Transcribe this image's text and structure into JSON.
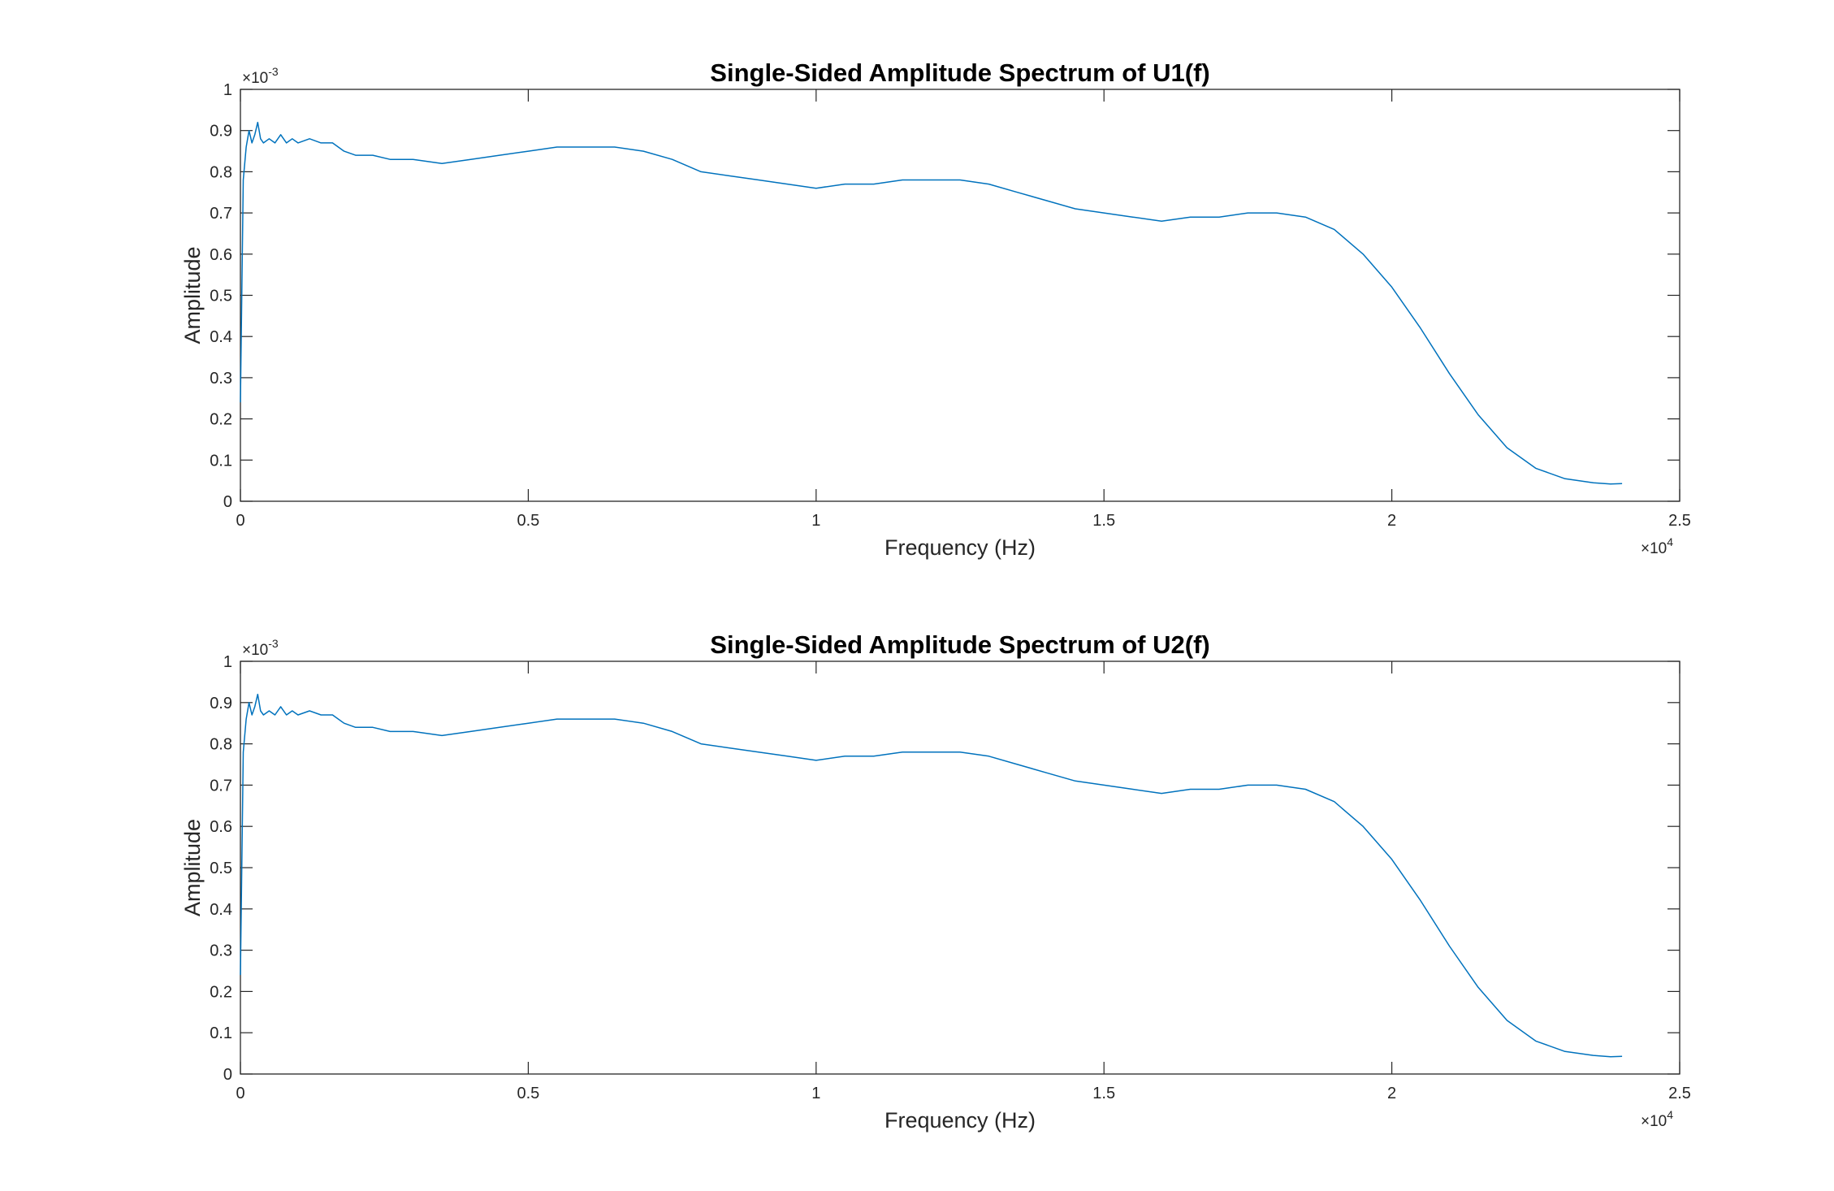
{
  "figure": {
    "background": "#ffffff",
    "line_color": "#0072bd",
    "axes_color": "#262626"
  },
  "chart_data": [
    {
      "type": "line",
      "title": "Single-Sided Amplitude Spectrum of U1(f)",
      "xlabel": "Frequency (Hz)",
      "ylabel": "Amplitude",
      "xlim": [
        0,
        25000
      ],
      "ylim": [
        0,
        0.001
      ],
      "x_ticks": [
        0,
        5000,
        10000,
        15000,
        20000,
        25000
      ],
      "x_tick_labels": [
        "0",
        "0.5",
        "1",
        "1.5",
        "2",
        "2.5"
      ],
      "x_exponent": {
        "base": "×10",
        "power": "4"
      },
      "y_ticks": [
        0,
        0.0001,
        0.0002,
        0.0003,
        0.0004,
        0.0005,
        0.0006,
        0.0007,
        0.0008,
        0.0009,
        0.001
      ],
      "y_tick_labels": [
        "0",
        "0.1",
        "0.2",
        "0.3",
        "0.4",
        "0.5",
        "0.6",
        "0.7",
        "0.8",
        "0.9",
        "1"
      ],
      "y_exponent": {
        "base": "×10",
        "power": "-3"
      },
      "grid": false,
      "series": [
        {
          "x": [
            0,
            50,
            100,
            150,
            200,
            250,
            300,
            350,
            400,
            500,
            600,
            700,
            800,
            900,
            1000,
            1200,
            1400,
            1600,
            1800,
            2000,
            2300,
            2600,
            3000,
            3500,
            4000,
            4500,
            5000,
            5500,
            6000,
            6500,
            7000,
            7500,
            8000,
            8500,
            9000,
            9500,
            10000,
            10500,
            11000,
            11500,
            12000,
            12500,
            13000,
            13500,
            14000,
            14500,
            15000,
            15500,
            16000,
            16500,
            17000,
            17500,
            18000,
            18500,
            19000,
            19500,
            20000,
            20500,
            21000,
            21500,
            22000,
            22500,
            23000,
            23500,
            23800,
            24000
          ],
          "y": [
            0.00024,
            0.00078,
            0.00086,
            0.0009,
            0.00087,
            0.00089,
            0.00092,
            0.00088,
            0.00087,
            0.00088,
            0.00087,
            0.00089,
            0.00087,
            0.00088,
            0.00087,
            0.00088,
            0.00087,
            0.00087,
            0.00085,
            0.00084,
            0.00084,
            0.00083,
            0.00083,
            0.00082,
            0.00083,
            0.00084,
            0.00085,
            0.00086,
            0.00086,
            0.00086,
            0.00085,
            0.00083,
            0.0008,
            0.00079,
            0.00078,
            0.00077,
            0.00076,
            0.00077,
            0.00077,
            0.00078,
            0.00078,
            0.00078,
            0.00077,
            0.00075,
            0.00073,
            0.00071,
            0.0007,
            0.00069,
            0.00068,
            0.00069,
            0.00069,
            0.0007,
            0.0007,
            0.00069,
            0.00066,
            0.0006,
            0.00052,
            0.00042,
            0.00031,
            0.00021,
            0.00013,
            8e-05,
            5.5e-05,
            4.5e-05,
            4.2e-05,
            4.3e-05
          ]
        }
      ]
    },
    {
      "type": "line",
      "title": "Single-Sided Amplitude Spectrum of U2(f)",
      "xlabel": "Frequency (Hz)",
      "ylabel": "Amplitude",
      "xlim": [
        0,
        25000
      ],
      "ylim": [
        0,
        0.001
      ],
      "x_ticks": [
        0,
        5000,
        10000,
        15000,
        20000,
        25000
      ],
      "x_tick_labels": [
        "0",
        "0.5",
        "1",
        "1.5",
        "2",
        "2.5"
      ],
      "x_exponent": {
        "base": "×10",
        "power": "4"
      },
      "y_ticks": [
        0,
        0.0001,
        0.0002,
        0.0003,
        0.0004,
        0.0005,
        0.0006,
        0.0007,
        0.0008,
        0.0009,
        0.001
      ],
      "y_tick_labels": [
        "0",
        "0.1",
        "0.2",
        "0.3",
        "0.4",
        "0.5",
        "0.6",
        "0.7",
        "0.8",
        "0.9",
        "1"
      ],
      "y_exponent": {
        "base": "×10",
        "power": "-3"
      },
      "grid": false,
      "series": [
        {
          "x": [
            0,
            50,
            100,
            150,
            200,
            250,
            300,
            350,
            400,
            500,
            600,
            700,
            800,
            900,
            1000,
            1200,
            1400,
            1600,
            1800,
            2000,
            2300,
            2600,
            3000,
            3500,
            4000,
            4500,
            5000,
            5500,
            6000,
            6500,
            7000,
            7500,
            8000,
            8500,
            9000,
            9500,
            10000,
            10500,
            11000,
            11500,
            12000,
            12500,
            13000,
            13500,
            14000,
            14500,
            15000,
            15500,
            16000,
            16500,
            17000,
            17500,
            18000,
            18500,
            19000,
            19500,
            20000,
            20500,
            21000,
            21500,
            22000,
            22500,
            23000,
            23500,
            23800,
            24000
          ],
          "y": [
            0.00024,
            0.00078,
            0.00086,
            0.0009,
            0.00087,
            0.00089,
            0.00092,
            0.00088,
            0.00087,
            0.00088,
            0.00087,
            0.00089,
            0.00087,
            0.00088,
            0.00087,
            0.00088,
            0.00087,
            0.00087,
            0.00085,
            0.00084,
            0.00084,
            0.00083,
            0.00083,
            0.00082,
            0.00083,
            0.00084,
            0.00085,
            0.00086,
            0.00086,
            0.00086,
            0.00085,
            0.00083,
            0.0008,
            0.00079,
            0.00078,
            0.00077,
            0.00076,
            0.00077,
            0.00077,
            0.00078,
            0.00078,
            0.00078,
            0.00077,
            0.00075,
            0.00073,
            0.00071,
            0.0007,
            0.00069,
            0.00068,
            0.00069,
            0.00069,
            0.0007,
            0.0007,
            0.00069,
            0.00066,
            0.0006,
            0.00052,
            0.00042,
            0.00031,
            0.00021,
            0.00013,
            8e-05,
            5.5e-05,
            4.5e-05,
            4.2e-05,
            4.3e-05
          ]
        }
      ]
    }
  ]
}
